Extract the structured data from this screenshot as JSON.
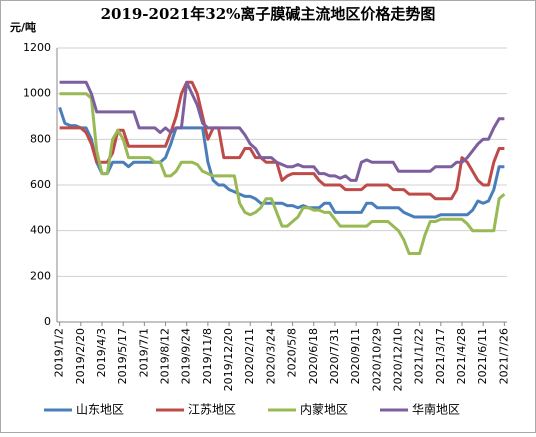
{
  "chart_data": {
    "type": "line",
    "title": "2019-2021年32%离子膜碱主流地区价格走势图",
    "y_label": "元/吨",
    "categories": [
      "2019/1/2",
      null,
      null,
      null,
      "2019/2/20",
      null,
      null,
      null,
      "2019/4/3",
      null,
      null,
      null,
      "2019/5/17",
      null,
      null,
      null,
      "2019/7/1",
      null,
      null,
      null,
      "2019/8/12",
      null,
      null,
      null,
      "2019/9/24",
      null,
      null,
      null,
      "2019/11/8",
      null,
      null,
      null,
      "2019/12/20",
      null,
      null,
      null,
      "2020/2/11",
      null,
      null,
      null,
      "2020/3/24",
      null,
      null,
      null,
      "2020/5/8",
      null,
      null,
      null,
      "2020/6/18",
      null,
      null,
      null,
      "2020/7/31",
      null,
      null,
      null,
      "2020/9/11",
      null,
      null,
      null,
      "2020/10/29",
      null,
      null,
      null,
      "2020/12/10",
      null,
      null,
      null,
      "2021/1/22",
      null,
      null,
      null,
      "2021/3/17",
      null,
      null,
      null,
      "2021/4/28",
      null,
      null,
      null,
      "2021/6/11",
      null,
      null,
      null,
      "2021/7/26"
    ],
    "series": [
      {
        "name": "山东地区",
        "color": "#4a7ebb",
        "values": [
          940,
          870,
          860,
          860,
          850,
          850,
          800,
          700,
          650,
          650,
          700,
          700,
          700,
          680,
          700,
          700,
          700,
          700,
          700,
          700,
          720,
          780,
          850,
          850,
          850,
          850,
          850,
          850,
          700,
          620,
          600,
          600,
          580,
          570,
          560,
          550,
          550,
          540,
          520,
          520,
          520,
          520,
          520,
          510,
          510,
          500,
          510,
          500,
          500,
          500,
          520,
          520,
          480,
          480,
          480,
          480,
          480,
          480,
          520,
          520,
          500,
          500,
          500,
          500,
          500,
          480,
          470,
          460,
          460,
          460,
          460,
          460,
          470,
          470,
          470,
          470,
          470,
          470,
          490,
          530,
          520,
          530,
          580,
          680,
          680
        ]
      },
      {
        "name": "江苏地区",
        "color": "#be4b48",
        "values": [
          850,
          850,
          850,
          850,
          850,
          830,
          780,
          700,
          700,
          700,
          740,
          840,
          840,
          770,
          770,
          770,
          770,
          770,
          770,
          770,
          770,
          830,
          900,
          1000,
          1050,
          1050,
          1000,
          900,
          800,
          850,
          850,
          720,
          720,
          720,
          720,
          760,
          760,
          720,
          720,
          700,
          700,
          700,
          620,
          640,
          650,
          650,
          650,
          650,
          650,
          620,
          600,
          600,
          600,
          600,
          580,
          580,
          580,
          580,
          600,
          600,
          600,
          600,
          600,
          580,
          580,
          580,
          560,
          560,
          560,
          560,
          560,
          540,
          540,
          540,
          540,
          580,
          720,
          700,
          660,
          620,
          600,
          600,
          700,
          760,
          760
        ]
      },
      {
        "name": "内蒙地区",
        "color": "#98b954",
        "values": [
          1000,
          1000,
          1000,
          1000,
          1000,
          1000,
          980,
          750,
          650,
          650,
          800,
          840,
          800,
          720,
          720,
          720,
          720,
          720,
          700,
          700,
          640,
          640,
          660,
          700,
          700,
          700,
          690,
          660,
          650,
          640,
          640,
          640,
          640,
          640,
          520,
          480,
          470,
          480,
          500,
          540,
          540,
          480,
          420,
          420,
          440,
          460,
          500,
          500,
          490,
          490,
          480,
          480,
          450,
          420,
          420,
          420,
          420,
          420,
          420,
          440,
          440,
          440,
          440,
          420,
          400,
          360,
          300,
          300,
          300,
          380,
          440,
          440,
          450,
          450,
          450,
          450,
          450,
          430,
          400,
          400,
          400,
          400,
          400,
          540,
          560
        ]
      },
      {
        "name": "华南地区",
        "color": "#7d5fa0",
        "values": [
          1050,
          1050,
          1050,
          1050,
          1050,
          1050,
          1000,
          920,
          920,
          920,
          920,
          920,
          920,
          920,
          920,
          850,
          850,
          850,
          850,
          830,
          850,
          830,
          850,
          850,
          1050,
          1000,
          950,
          870,
          850,
          850,
          850,
          850,
          850,
          850,
          850,
          820,
          780,
          760,
          720,
          720,
          720,
          700,
          690,
          680,
          680,
          690,
          680,
          680,
          680,
          650,
          650,
          640,
          640,
          630,
          640,
          620,
          620,
          700,
          710,
          700,
          700,
          700,
          700,
          700,
          660,
          660,
          660,
          660,
          660,
          660,
          660,
          680,
          680,
          680,
          680,
          700,
          700,
          720,
          750,
          780,
          800,
          800,
          850,
          890,
          890
        ]
      }
    ],
    "ylim": [
      0,
      1200
    ],
    "yticks": [
      0,
      200,
      400,
      600,
      800,
      1000,
      1200
    ],
    "grid": true,
    "legend": "bottom"
  }
}
